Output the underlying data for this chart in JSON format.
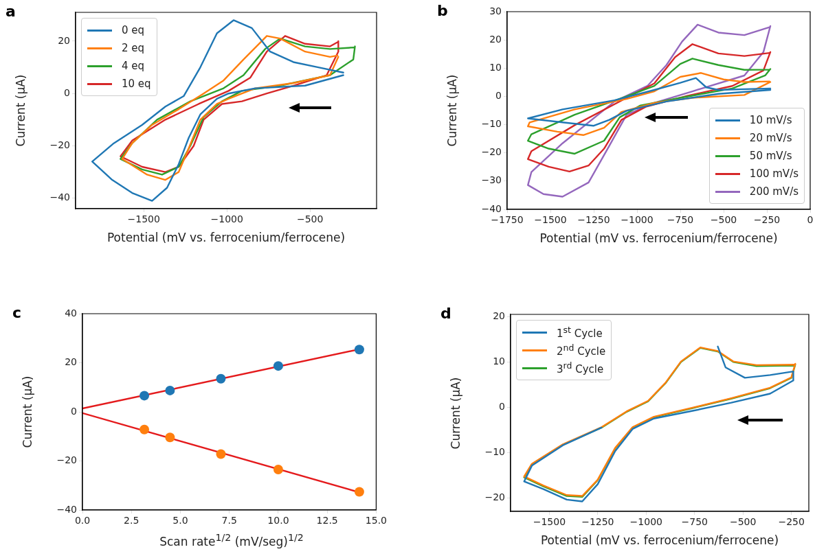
{
  "chart_data": [
    {
      "type": "line",
      "title": "a",
      "xlabel": "Potential (mV vs. ferrocenium/ferrocene)",
      "ylabel": "Current (μA)",
      "xlim": [
        -1910,
        -100
      ],
      "ylim": [
        -44,
        31
      ],
      "xticks": [
        -1500,
        -1000,
        -500
      ],
      "yticks": [
        -40,
        -20,
        0,
        20
      ],
      "legend": "top left",
      "series": [
        {
          "name": "0 eq",
          "color": "#1f77b4",
          "x": [
            -300,
            -530,
            -830,
            -990,
            -1060,
            -1160,
            -1230,
            -1290,
            -1360,
            -1450,
            -1570,
            -1690,
            -1810,
            -1680,
            -1510,
            -1370,
            -1260,
            -1160,
            -1060,
            -960,
            -850,
            -740,
            -600,
            -450,
            -300
          ],
          "values": [
            7,
            3,
            2,
            0,
            -2,
            -8,
            -17,
            -27,
            -36,
            -41,
            -38,
            -33,
            -26,
            -19,
            -12,
            -5,
            -1,
            10,
            23,
            28,
            25,
            16,
            12,
            10,
            8
          ]
        },
        {
          "name": "2 eq",
          "color": "#ff7f0e",
          "x": [
            -330,
            -380,
            -600,
            -830,
            -990,
            -1060,
            -1160,
            -1230,
            -1290,
            -1370,
            -1480,
            -1630,
            -1570,
            -1450,
            -1290,
            -1140,
            -1020,
            -900,
            -760,
            -680,
            -530,
            -380,
            -335
          ],
          "values": [
            14,
            7,
            4,
            2,
            -2,
            -4,
            -10,
            -21,
            -30,
            -33,
            -31,
            -25,
            -19,
            -12,
            -6,
            0,
            5,
            13,
            22,
            21,
            16,
            14,
            14.5
          ]
        },
        {
          "name": "4 eq",
          "color": "#2ca02c",
          "x": [
            -230,
            -240,
            -380,
            -680,
            -910,
            -1030,
            -1140,
            -1220,
            -1290,
            -1390,
            -1510,
            -1640,
            -1570,
            -1420,
            -1220,
            -1020,
            -900,
            -770,
            -680,
            -530,
            -380,
            -235
          ],
          "values": [
            18,
            13,
            7,
            3,
            1,
            -3,
            -9,
            -20,
            -28,
            -31,
            -29,
            -25,
            -19,
            -10,
            -3,
            2,
            7,
            17,
            21,
            18,
            17,
            17.6
          ]
        },
        {
          "name": "10 eq",
          "color": "#d62728",
          "x": [
            -330,
            -330,
            -400,
            -600,
            -760,
            -910,
            -1030,
            -1140,
            -1200,
            -1290,
            -1370,
            -1510,
            -1640,
            -1570,
            -1370,
            -1170,
            -990,
            -860,
            -760,
            -650,
            -530,
            -380,
            -335
          ],
          "values": [
            20,
            16,
            7,
            3,
            0,
            -3,
            -4,
            -10,
            -20,
            -28,
            -30,
            -28,
            -24,
            -18,
            -10,
            -4,
            1,
            6,
            16,
            22,
            19,
            18,
            19.6
          ]
        }
      ]
    },
    {
      "type": "line",
      "title": "b",
      "xlabel": "Potential (mV vs. ferrocenium/ferrocene)",
      "ylabel": "Current (μA)",
      "xlim": [
        -1750,
        0
      ],
      "ylim": [
        -40,
        30
      ],
      "xticks": [
        -1750,
        -1500,
        -1250,
        -1000,
        -750,
        -500,
        -250,
        0
      ],
      "yticks": [
        -40,
        -30,
        -20,
        -10,
        0,
        10,
        20,
        30
      ],
      "legend": "bottom right",
      "series": [
        {
          "name": "10 mV/s",
          "color": "#1f77b4",
          "x": [
            -230,
            -530,
            -830,
            -1060,
            -1160,
            -1250,
            -1430,
            -1630,
            -1430,
            -1130,
            -900,
            -750,
            -660,
            -600,
            -530,
            -230
          ],
          "values": [
            2.3,
            0.9,
            -1.8,
            -5.1,
            -8.3,
            -10.4,
            -9.2,
            -7.8,
            -4.6,
            -1.4,
            2.3,
            4.8,
            6.5,
            3.2,
            2.3,
            2.8
          ]
        },
        {
          "name": "20 mV/s",
          "color": "#ff7f0e",
          "x": [
            -230,
            -380,
            -680,
            -900,
            -1090,
            -1190,
            -1310,
            -1460,
            -1630,
            -1620,
            -1360,
            -1060,
            -900,
            -750,
            -630,
            -500,
            -380,
            -235
          ],
          "values": [
            5.1,
            0.5,
            -0.5,
            -2.3,
            -5.5,
            -11.1,
            -13.7,
            -12.5,
            -10.6,
            -9.2,
            -4.6,
            -0.9,
            1.8,
            6.9,
            8.3,
            6,
            5.1,
            5.3
          ]
        },
        {
          "name": "50 mV/s",
          "color": "#2ca02c",
          "x": [
            -230,
            -260,
            -450,
            -750,
            -980,
            -1100,
            -1190,
            -1360,
            -1510,
            -1630,
            -1610,
            -1360,
            -1060,
            -900,
            -750,
            -680,
            -530,
            -380,
            -235
          ],
          "values": [
            9.7,
            7.4,
            2.8,
            -0.5,
            -3.2,
            -7.4,
            -15.7,
            -20.3,
            -18.5,
            -15.7,
            -13.4,
            -6.5,
            0,
            3.7,
            11.5,
            13.4,
            11.1,
            9.4,
            9.5
          ]
        },
        {
          "name": "100 mV/s",
          "color": "#d62728",
          "x": [
            -230,
            -270,
            -450,
            -710,
            -950,
            -1090,
            -1190,
            -1280,
            -1390,
            -1510,
            -1630,
            -1610,
            -1360,
            -1060,
            -900,
            -780,
            -680,
            -530,
            -380,
            -235
          ],
          "values": [
            15.7,
            9.2,
            3.7,
            0.2,
            -3.7,
            -8.3,
            -18.5,
            -24.5,
            -26.6,
            -24.9,
            -22.2,
            -19.4,
            -10.2,
            -0.5,
            4.6,
            13.9,
            18.5,
            15.2,
            14.3,
            15.4
          ]
        },
        {
          "name": "200 mV/s",
          "color": "#9467bd",
          "x": [
            -230,
            -270,
            -380,
            -680,
            -900,
            -1060,
            -1160,
            -1280,
            -1430,
            -1540,
            -1630,
            -1610,
            -1430,
            -1130,
            -940,
            -830,
            -740,
            -650,
            -530,
            -380,
            -235
          ],
          "values": [
            24.9,
            15.7,
            7.4,
            1.8,
            -2.3,
            -6.5,
            -17.5,
            -30.5,
            -35.5,
            -34.6,
            -31.4,
            -26.8,
            -16.6,
            -1.8,
            3.7,
            11.1,
            19.4,
            25.4,
            22.6,
            21.7,
            24.5
          ]
        }
      ]
    },
    {
      "type": "scatter",
      "title": "c",
      "xlabel": "Scan rate$^{1/2}$ (mV/seg)$^{1/2}$",
      "ylabel": "Current (μA)",
      "xlim": [
        0,
        15
      ],
      "ylim": [
        -40,
        40
      ],
      "xticks": [
        {
          "value": 0,
          "label": "0.0"
        },
        2.5,
        {
          "value": 5,
          "label": "5.0"
        },
        7.5,
        {
          "value": 10,
          "label": "10.0"
        },
        12.5,
        {
          "value": 15,
          "label": "15.0"
        }
      ],
      "yticks": [
        -40,
        -20,
        0,
        20,
        40
      ],
      "marker": "circle",
      "series": [
        {
          "color": "#1f77b4",
          "x": [
            3.16,
            4.47,
            7.07,
            10,
            14.14
          ],
          "values": [
            6.6,
            8.7,
            13.5,
            18.7,
            25.4
          ]
        },
        {
          "color": "#ff7f0e",
          "x": [
            3.16,
            4.47,
            7.07,
            10,
            14.14
          ],
          "values": [
            -7.2,
            -10.4,
            -17.2,
            -23.5,
            -32.6
          ]
        },
        {
          "type": "line",
          "marker": "none",
          "color": "#e41a1c",
          "x": [
            0,
            14.14
          ],
          "values": [
            1.4,
            25.5
          ]
        },
        {
          "type": "line",
          "marker": "none",
          "color": "#e41a1c",
          "x": [
            0,
            14.14
          ],
          "values": [
            -0.5,
            -32.8
          ]
        }
      ]
    },
    {
      "type": "line",
      "title": "d",
      "xlabel": "Potential (mV vs. ferrocenium/ferrocene)",
      "ylabel": "Current (μA)",
      "xlim": [
        -1700,
        -160
      ],
      "ylim": [
        -23,
        20.5
      ],
      "xticks": [
        -1500,
        -1250,
        -1000,
        -750,
        -500,
        -250
      ],
      "yticks": [
        -20,
        -10,
        0,
        10,
        20
      ],
      "legend": "top left",
      "series": [
        {
          "name": "1$^{st}$ Cycle",
          "color": "#1f77b4",
          "x": [
            -630,
            -590,
            -490,
            -360,
            -240,
            -240,
            -360,
            -560,
            -760,
            -960,
            -1070,
            -1160,
            -1250,
            -1330,
            -1410,
            -1530,
            -1630,
            -1590,
            -1430,
            -1230
          ],
          "values": [
            13.4,
            8.8,
            6.5,
            7.1,
            7.9,
            5.9,
            3,
            1,
            -0.8,
            -2.5,
            -4.8,
            -9.7,
            -17,
            -20.8,
            -20.4,
            -18.1,
            -16.4,
            -12.9,
            -8.4,
            -4.5
          ]
        },
        {
          "name": "2$^{nd}$ Cycle",
          "color": "#ff7f0e",
          "x": [
            -230,
            -250,
            -360,
            -560,
            -760,
            -960,
            -1070,
            -1160,
            -1250,
            -1330,
            -1410,
            -1530,
            -1630,
            -1590,
            -1430,
            -1230,
            -1100,
            -990,
            -900,
            -820,
            -720,
            -630,
            -550,
            -430,
            -235
          ],
          "values": [
            9.6,
            6.6,
            4.3,
            2,
            -0.1,
            -2.1,
            -4.4,
            -9,
            -16,
            -19.6,
            -19.4,
            -17.3,
            -15.3,
            -12.5,
            -8.2,
            -4.4,
            -0.9,
            1.4,
            5.4,
            10.1,
            13.2,
            12.4,
            10.1,
            9.3,
            9.4
          ]
        },
        {
          "name": "3$^{rd}$ Cycle",
          "color": "#2ca02c",
          "x": [
            -230,
            -250,
            -360,
            -560,
            -760,
            -960,
            -1070,
            -1160,
            -1250,
            -1330,
            -1410,
            -1530,
            -1630,
            -1590,
            -1430,
            -1230,
            -1100,
            -990,
            -900,
            -820,
            -720,
            -630,
            -550,
            -430,
            -235
          ],
          "values": [
            9.4,
            6.5,
            4.2,
            1.9,
            -0.2,
            -2.2,
            -4.5,
            -9.1,
            -16.1,
            -19.8,
            -19.6,
            -17.5,
            -15.5,
            -12.6,
            -8.3,
            -4.5,
            -1,
            1.3,
            5.3,
            10,
            13.1,
            12.3,
            10,
            9.1,
            9.2
          ]
        }
      ]
    }
  ]
}
